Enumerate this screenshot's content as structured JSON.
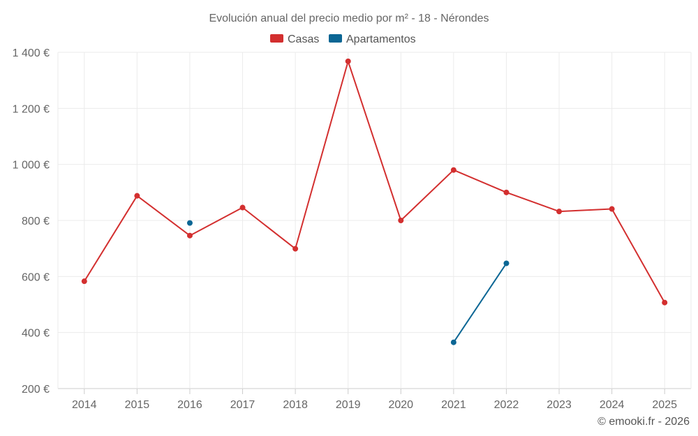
{
  "chart_data": {
    "type": "line",
    "title": "Evolución anual del precio medio por m² - 18 - Nérondes",
    "categories": [
      "2014",
      "2015",
      "2016",
      "2017",
      "2018",
      "2019",
      "2020",
      "2021",
      "2022",
      "2023",
      "2024",
      "2025"
    ],
    "series": [
      {
        "name": "Casas",
        "color": "#d32f2f",
        "values": [
          583,
          888,
          746,
          846,
          699,
          1368,
          800,
          980,
          900,
          832,
          841,
          507
        ]
      },
      {
        "name": "Apartamentos",
        "color": "#0b6694",
        "values": [
          null,
          null,
          791,
          null,
          null,
          null,
          null,
          365,
          647,
          null,
          null,
          null
        ]
      }
    ],
    "ylim": [
      200,
      1400
    ],
    "yticks": [
      200,
      400,
      600,
      800,
      1000,
      1200,
      1400
    ],
    "ytick_labels": [
      "200 €",
      "400 €",
      "600 €",
      "800 €",
      "1 000 €",
      "1 200 €",
      "1 400 €"
    ],
    "xlabel": "",
    "ylabel": "",
    "grid": true,
    "legend_position": "top-center"
  },
  "credit": "© emooki.fr - 2026"
}
